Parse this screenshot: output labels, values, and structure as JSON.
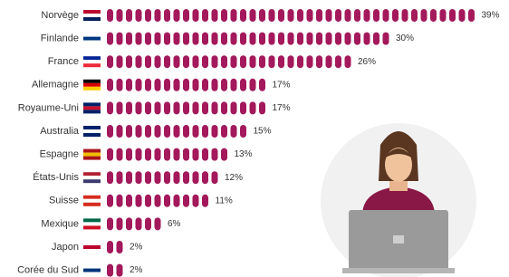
{
  "chart_data": {
    "type": "bar",
    "orientation": "horizontal",
    "color": "#a3195b",
    "categories": [
      "Norvège",
      "Finlande",
      "France",
      "Allemagne",
      "Royaume-Uni",
      "Australia",
      "Espagne",
      "États-Unis",
      "Suisse",
      "Mexique",
      "Japon",
      "Corée du Sud"
    ],
    "values": [
      39,
      30,
      26,
      17,
      17,
      15,
      13,
      12,
      11,
      6,
      2,
      2
    ],
    "value_labels": [
      "39%",
      "30%",
      "26%",
      "17%",
      "17%",
      "15%",
      "13%",
      "12%",
      "11%",
      "6%",
      "2%",
      "2%"
    ]
  }
}
